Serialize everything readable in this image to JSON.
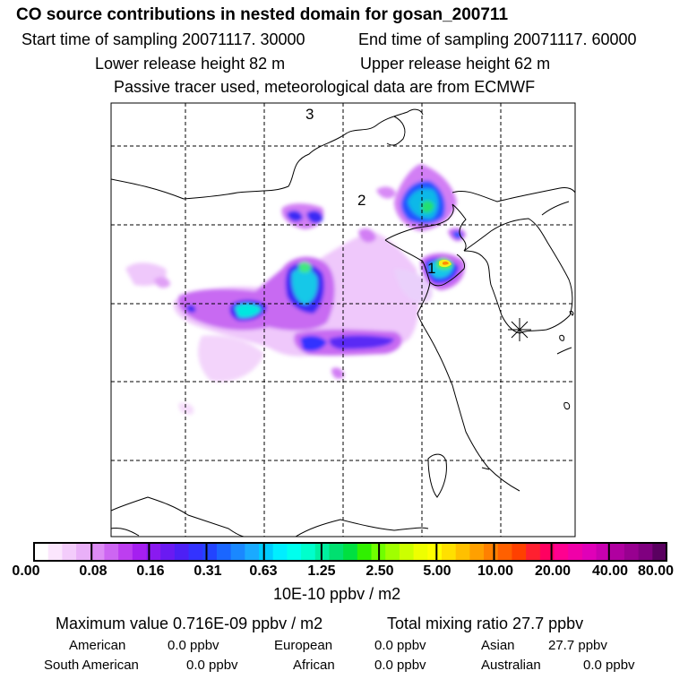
{
  "header": {
    "title": "CO  source contributions in nested domain for gosan_200711",
    "start_time": "Start time of sampling 20071117. 30000",
    "end_time": "End time of sampling 20071117. 60000",
    "lower_height": "Lower release height   82 m",
    "upper_height": "Upper release height   62 m",
    "note": "Passive tracer used, meteorological data are from ECMWF"
  },
  "map": {
    "markers": [
      "1",
      "2",
      "3"
    ],
    "receptor_icon": "asterisk-receptor-icon"
  },
  "colorbar": {
    "labels": [
      "0.00",
      "0.08",
      "0.16",
      "0.31",
      "0.63",
      "1.25",
      "2.50",
      "5.00",
      "10.00",
      "20.00",
      "40.00",
      "80.00"
    ],
    "colors": [
      "#ffffff",
      "#fbe6fd",
      "#f3ccfb",
      "#e9b0f8",
      "#dd8cf5",
      "#cd66f2",
      "#bd3ef0",
      "#a51ff0",
      "#8a1af0",
      "#6a1af2",
      "#4d20f5",
      "#3333ff",
      "#2244ff",
      "#1a66ff",
      "#1a88ff",
      "#1aaaff",
      "#00ccff",
      "#00eeff",
      "#00ffee",
      "#00ffcc",
      "#00f0a0",
      "#00e070",
      "#00e040",
      "#30f000",
      "#70ff00",
      "#a0ff00",
      "#ccff00",
      "#eeff00",
      "#ffff00",
      "#ffe000",
      "#ffc000",
      "#ffa000",
      "#ff8000",
      "#ff6000",
      "#ff4000",
      "#ff2030",
      "#ff0060",
      "#ff0090",
      "#f000a8",
      "#e000b8",
      "#c800b0",
      "#b000a0",
      "#980090",
      "#800080",
      "#5a0060"
    ],
    "unit": "10E-10 ppbv / m2"
  },
  "summary": {
    "max_value": "Maximum value  0.716E-09 ppbv / m2",
    "total_mixing": "Total mixing ratio       27.7 ppbv",
    "american_label": "American",
    "american_value": "0.0 ppbv",
    "european_label": "European",
    "european_value": "0.0 ppbv",
    "asian_label": "Asian",
    "asian_value": "27.7 ppbv",
    "south_american_label": "South American",
    "south_american_value": "0.0 ppbv",
    "african_label": "African",
    "african_value": "0.0 ppbv",
    "australian_label": "Australian",
    "australian_value": "0.0 ppbv"
  }
}
